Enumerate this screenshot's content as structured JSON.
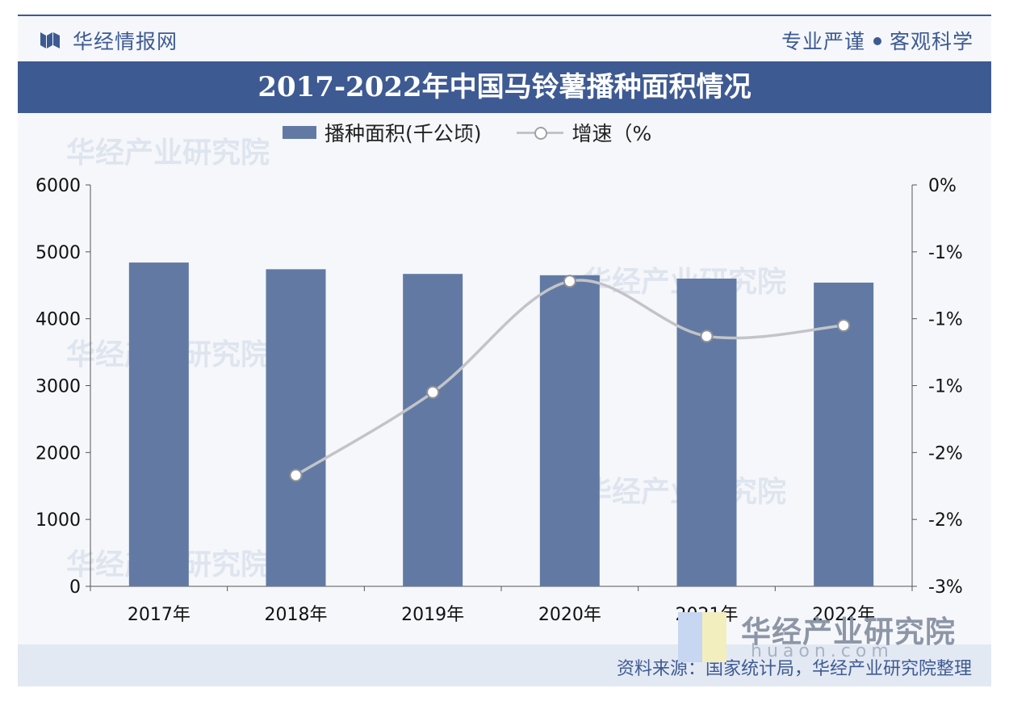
{
  "header": {
    "logo_text": "华经情报网",
    "slogan_left": "专业严谨",
    "slogan_right": "客观科学"
  },
  "title": "2017-2022年中国马铃薯播种面积情况",
  "legend": {
    "bar_label": "播种面积(千公顷)",
    "line_label": "增速（%"
  },
  "watermark": {
    "text": "华经产业研究院",
    "url": "www.huaon.com"
  },
  "corner_brand": {
    "name": "华经产业研究院",
    "url": "huaon.com"
  },
  "source": "资料来源：国家统计局，华经产业研究院整理",
  "colors": {
    "brand": "#3e5a93",
    "bar": "#627aa3",
    "line": "#c2c4c8"
  },
  "chart_data": {
    "type": "bar",
    "categories": [
      "2017年",
      "2018年",
      "2019年",
      "2020年",
      "2021年",
      "2022年"
    ],
    "series": [
      {
        "name": "播种面积(千公顷)",
        "type": "bar",
        "axis": "left",
        "values": [
          4840,
          4740,
          4670,
          4650,
          4600,
          4540
        ]
      },
      {
        "name": "增速（%",
        "type": "line",
        "axis": "right",
        "smooth": true,
        "values": [
          null,
          -2.17,
          -1.55,
          -0.72,
          -1.13,
          -1.05
        ]
      }
    ],
    "y_left": {
      "min": 0,
      "max": 6000,
      "ticks": [
        "0",
        "1000",
        "2000",
        "3000",
        "4000",
        "5000",
        "6000"
      ]
    },
    "y_right": {
      "min": -3,
      "max": 0,
      "ticks": [
        "-3%",
        "-2%",
        "-2%",
        "-1%",
        "-1%",
        "-1%",
        "0%"
      ]
    },
    "grid": false,
    "legend_position": "top"
  }
}
